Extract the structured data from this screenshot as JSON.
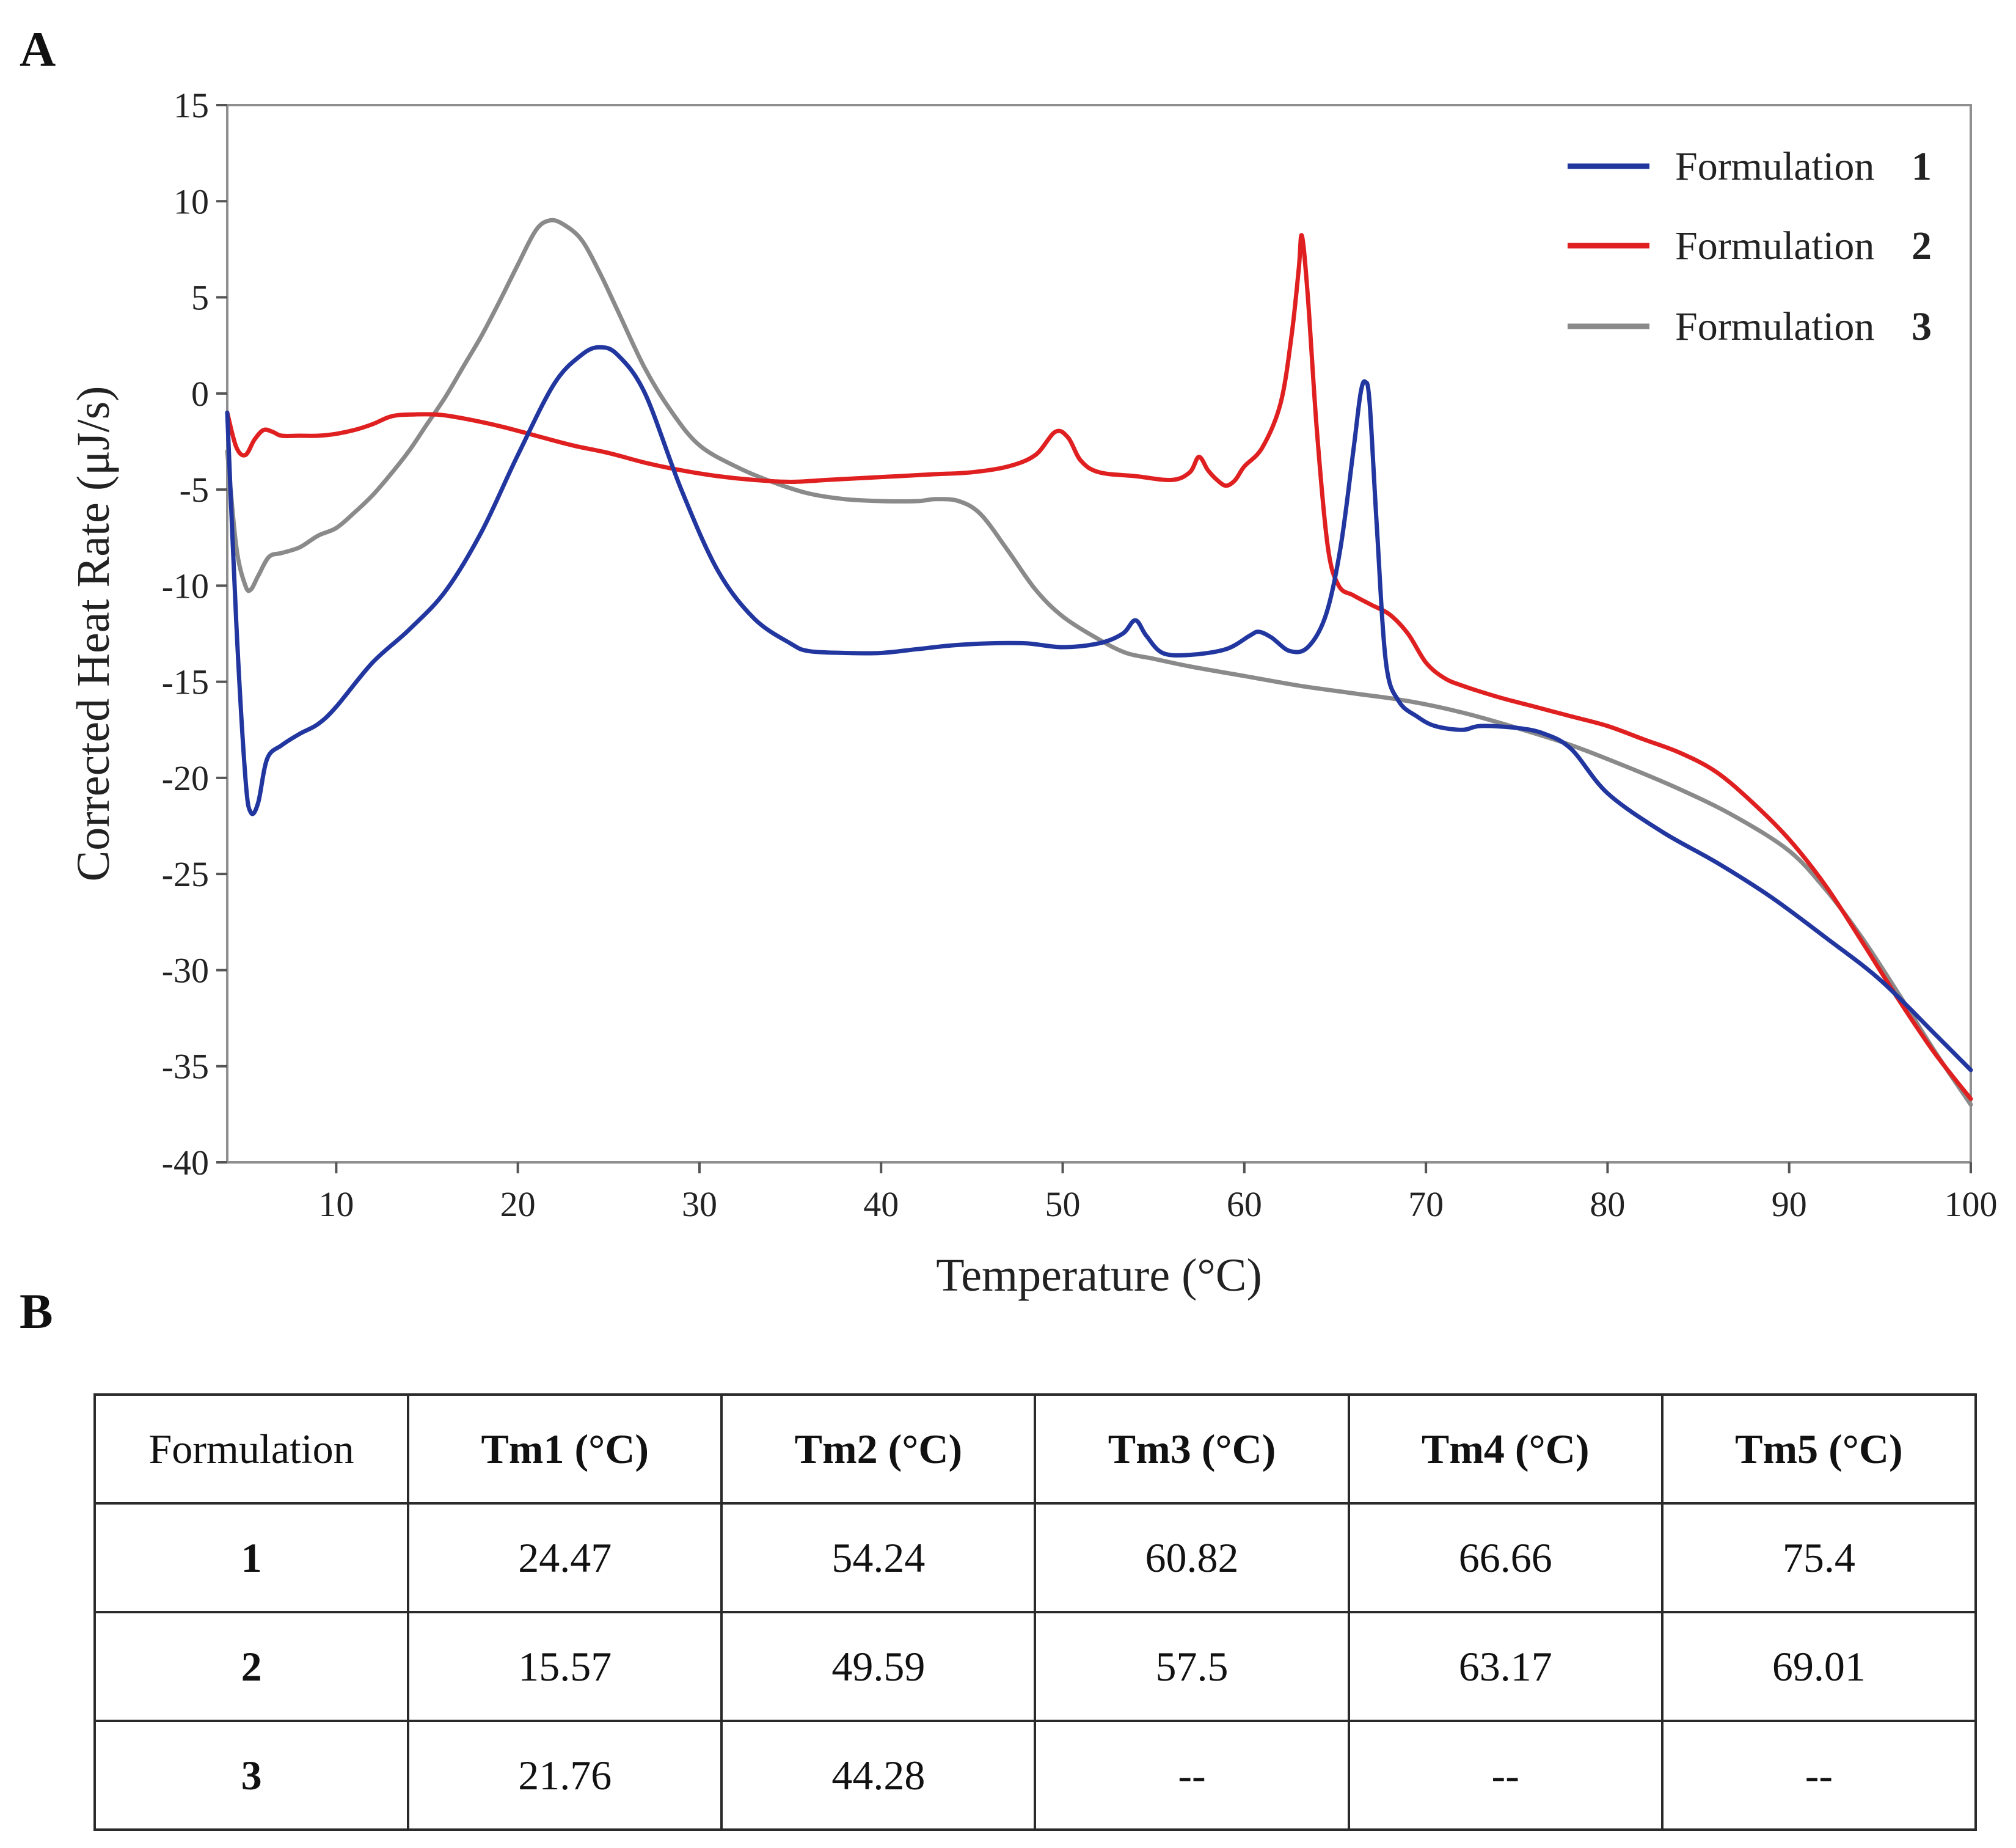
{
  "panel_a_label": "A",
  "panel_b_label": "B",
  "chart_data": {
    "type": "line",
    "title": "",
    "xlabel": "Temperature (°C)",
    "ylabel": "Corrected Heat Rate (μJ/s)",
    "xlim": [
      4,
      100
    ],
    "ylim": [
      -40,
      15
    ],
    "xticks": [
      10,
      20,
      30,
      40,
      50,
      60,
      70,
      80,
      90,
      100
    ],
    "yticks": [
      15,
      10,
      5,
      0,
      -5,
      -10,
      -15,
      -20,
      -25,
      -30,
      -35,
      -40
    ],
    "legend": "top-right",
    "grid": false,
    "series": [
      {
        "name": "Formulation 1",
        "legend_text": "Formulation",
        "legend_num": "1",
        "color": "#2236a0",
        "x": [
          4,
          4.5,
          5,
          5.3,
          5.7,
          6.2,
          7,
          8,
          9,
          10,
          12,
          14,
          16,
          18,
          20,
          22,
          23.5,
          24.5,
          25.5,
          27,
          29,
          31,
          33,
          35,
          36,
          38,
          40,
          42,
          44,
          46,
          48,
          50,
          52,
          53.3,
          54,
          54.6,
          55.5,
          57,
          59,
          60.3,
          60.8,
          61.5,
          62.5,
          63.5,
          64.5,
          65.3,
          66,
          66.4,
          66.66,
          66.9,
          67.3,
          67.8,
          68.5,
          69.5,
          70.5,
          72,
          73,
          75,
          76.5,
          78,
          80,
          83,
          86,
          89,
          92,
          95,
          98,
          100
        ],
        "y": [
          -1,
          -12,
          -20,
          -21.8,
          -21.3,
          -19,
          -18.3,
          -17.7,
          -17.2,
          -16.3,
          -14,
          -12.3,
          -10.3,
          -7.2,
          -3.2,
          0.5,
          2,
          2.4,
          2,
          0,
          -5,
          -9.2,
          -11.7,
          -13,
          -13.4,
          -13.5,
          -13.5,
          -13.3,
          -13.1,
          -13,
          -13,
          -13.2,
          -13,
          -12.5,
          -11.8,
          -12.6,
          -13.5,
          -13.6,
          -13.3,
          -12.6,
          -12.4,
          -12.7,
          -13.4,
          -13.2,
          -11.5,
          -8,
          -3,
          0,
          0.6,
          -0.5,
          -7,
          -14,
          -16,
          -16.8,
          -17.3,
          -17.5,
          -17.3,
          -17.4,
          -17.7,
          -18.5,
          -20.8,
          -22.8,
          -24.4,
          -26.2,
          -28.3,
          -30.5,
          -33.3,
          -35.2
        ]
      },
      {
        "name": "Formulation 2",
        "legend_text": "Formulation",
        "legend_num": "2",
        "color": "#e02020",
        "x": [
          4,
          4.5,
          5,
          5.5,
          6,
          6.5,
          7,
          8,
          9,
          10,
          11,
          12,
          13,
          14,
          15.57,
          17,
          19,
          21,
          23,
          25,
          27,
          29,
          31,
          33,
          35,
          37,
          39,
          41,
          43,
          45,
          47,
          48.5,
          49.59,
          50.3,
          51,
          52,
          54,
          56,
          57,
          57.5,
          58,
          58.5,
          59,
          59.5,
          60,
          61,
          62,
          62.6,
          63,
          63.17,
          63.5,
          64,
          64.6,
          65.2,
          66,
          67,
          68,
          69.01,
          70,
          71,
          72,
          74,
          76,
          78,
          80,
          82,
          84,
          86,
          88,
          90,
          92,
          94,
          96,
          98,
          100
        ],
        "y": [
          -1,
          -2.8,
          -3.2,
          -2.4,
          -1.9,
          -2,
          -2.2,
          -2.2,
          -2.2,
          -2.1,
          -1.9,
          -1.6,
          -1.2,
          -1.1,
          -1.1,
          -1.3,
          -1.7,
          -2.2,
          -2.7,
          -3.1,
          -3.6,
          -4,
          -4.3,
          -4.5,
          -4.6,
          -4.5,
          -4.4,
          -4.3,
          -4.2,
          -4.1,
          -3.8,
          -3.2,
          -2,
          -2.3,
          -3.5,
          -4.1,
          -4.3,
          -4.5,
          -4.1,
          -3.3,
          -4,
          -4.5,
          -4.8,
          -4.5,
          -3.8,
          -2.8,
          -0.5,
          3,
          6.5,
          8.2,
          5,
          -2,
          -8,
          -10,
          -10.5,
          -11,
          -11.5,
          -12.5,
          -14,
          -14.8,
          -15.2,
          -15.8,
          -16.3,
          -16.8,
          -17.3,
          -18,
          -18.7,
          -19.7,
          -21.3,
          -23.2,
          -25.6,
          -28.5,
          -31.5,
          -34.3,
          -36.7
        ]
      },
      {
        "name": "Formulation 3",
        "legend_text": "Formulation",
        "legend_num": "3",
        "color": "#8a8a8a",
        "x": [
          4,
          4.5,
          5,
          5.3,
          5.7,
          6.3,
          7,
          8,
          9,
          10,
          11,
          12,
          13,
          14,
          15,
          16,
          17,
          18,
          19,
          20,
          21,
          21.76,
          22.5,
          23.5,
          24.5,
          25.5,
          27,
          28.5,
          30,
          32,
          34,
          36,
          38,
          40,
          42,
          43,
          44.28,
          45.5,
          47,
          48.5,
          50,
          52,
          53.5,
          55,
          57,
          60,
          63,
          66,
          69,
          72,
          75,
          78,
          81,
          84,
          87,
          90,
          92,
          94,
          96,
          98,
          100
        ],
        "y": [
          -3,
          -8,
          -10,
          -10.2,
          -9.5,
          -8.5,
          -8.3,
          -8,
          -7.4,
          -7,
          -6.2,
          -5.3,
          -4.2,
          -3,
          -1.6,
          -0.2,
          1.4,
          3,
          4.8,
          6.7,
          8.5,
          9,
          8.8,
          8,
          6.3,
          4.3,
          1.3,
          -1,
          -2.7,
          -3.8,
          -4.6,
          -5.2,
          -5.5,
          -5.6,
          -5.6,
          -5.5,
          -5.6,
          -6.3,
          -8.2,
          -10.2,
          -11.6,
          -12.8,
          -13.5,
          -13.8,
          -14.2,
          -14.7,
          -15.2,
          -15.6,
          -16,
          -16.6,
          -17.4,
          -18.3,
          -19.4,
          -20.6,
          -22,
          -23.8,
          -25.8,
          -28.3,
          -31.2,
          -34.2,
          -37
        ]
      }
    ]
  },
  "table": {
    "header": [
      "Formulation",
      "Tm1 (°C)",
      "Tm2 (°C)",
      "Tm3 (°C)",
      "Tm4 (°C)",
      "Tm5 (°C)"
    ],
    "rows": [
      [
        "1",
        "24.47",
        "54.24",
        "60.82",
        "66.66",
        "75.4"
      ],
      [
        "2",
        "15.57",
        "49.59",
        "57.5",
        "63.17",
        "69.01"
      ],
      [
        "3",
        "21.76",
        "44.28",
        "--",
        "--",
        "--"
      ]
    ]
  }
}
